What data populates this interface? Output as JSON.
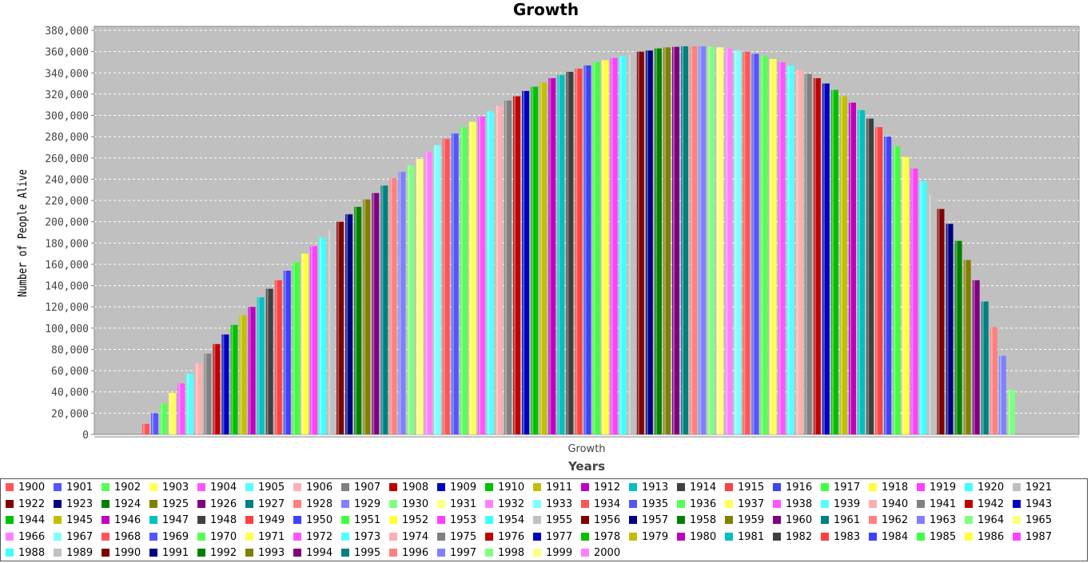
{
  "chart_data": {
    "type": "bar",
    "title": "Growth",
    "xlabel": "Years",
    "ylabel": "Number of People Alive",
    "category_label": "Growth",
    "ylim": [
      0,
      380000
    ],
    "ytick_step": 20000,
    "grid": true,
    "legend": "bottom",
    "series": [
      {
        "name": "1900",
        "value": 10000
      },
      {
        "name": "1901",
        "value": 20000
      },
      {
        "name": "1902",
        "value": 29000
      },
      {
        "name": "1903",
        "value": 39000
      },
      {
        "name": "1904",
        "value": 48000
      },
      {
        "name": "1905",
        "value": 57000
      },
      {
        "name": "1906",
        "value": 67000
      },
      {
        "name": "1907",
        "value": 76000
      },
      {
        "name": "1908",
        "value": 85000
      },
      {
        "name": "1909",
        "value": 94000
      },
      {
        "name": "1910",
        "value": 103000
      },
      {
        "name": "1911",
        "value": 112000
      },
      {
        "name": "1912",
        "value": 120000
      },
      {
        "name": "1913",
        "value": 129000
      },
      {
        "name": "1914",
        "value": 137000
      },
      {
        "name": "1915",
        "value": 145000
      },
      {
        "name": "1916",
        "value": 154000
      },
      {
        "name": "1917",
        "value": 162000
      },
      {
        "name": "1918",
        "value": 170000
      },
      {
        "name": "1919",
        "value": 177000
      },
      {
        "name": "1920",
        "value": 185000
      },
      {
        "name": "1921",
        "value": 192000
      },
      {
        "name": "1922",
        "value": 200000
      },
      {
        "name": "1923",
        "value": 207000
      },
      {
        "name": "1924",
        "value": 214000
      },
      {
        "name": "1925",
        "value": 221000
      },
      {
        "name": "1926",
        "value": 227000
      },
      {
        "name": "1927",
        "value": 234000
      },
      {
        "name": "1928",
        "value": 241000
      },
      {
        "name": "1929",
        "value": 247000
      },
      {
        "name": "1930",
        "value": 253000
      },
      {
        "name": "1931",
        "value": 259000
      },
      {
        "name": "1932",
        "value": 266000
      },
      {
        "name": "1933",
        "value": 272000
      },
      {
        "name": "1934",
        "value": 278000
      },
      {
        "name": "1935",
        "value": 283000
      },
      {
        "name": "1936",
        "value": 289000
      },
      {
        "name": "1937",
        "value": 294000
      },
      {
        "name": "1938",
        "value": 299000
      },
      {
        "name": "1939",
        "value": 304000
      },
      {
        "name": "1940",
        "value": 309000
      },
      {
        "name": "1941",
        "value": 314000
      },
      {
        "name": "1942",
        "value": 318000
      },
      {
        "name": "1943",
        "value": 323000
      },
      {
        "name": "1944",
        "value": 327000
      },
      {
        "name": "1945",
        "value": 331000
      },
      {
        "name": "1946",
        "value": 335000
      },
      {
        "name": "1947",
        "value": 338000
      },
      {
        "name": "1948",
        "value": 341000
      },
      {
        "name": "1949",
        "value": 344000
      },
      {
        "name": "1950",
        "value": 347000
      },
      {
        "name": "1951",
        "value": 350000
      },
      {
        "name": "1952",
        "value": 352000
      },
      {
        "name": "1953",
        "value": 354000
      },
      {
        "name": "1954",
        "value": 356000
      },
      {
        "name": "1955",
        "value": 358000
      },
      {
        "name": "1956",
        "value": 360000
      },
      {
        "name": "1957",
        "value": 361000
      },
      {
        "name": "1958",
        "value": 363000
      },
      {
        "name": "1959",
        "value": 364000
      },
      {
        "name": "1960",
        "value": 364500
      },
      {
        "name": "1961",
        "value": 365000
      },
      {
        "name": "1962",
        "value": 365000
      },
      {
        "name": "1963",
        "value": 365000
      },
      {
        "name": "1964",
        "value": 364500
      },
      {
        "name": "1965",
        "value": 364000
      },
      {
        "name": "1966",
        "value": 363000
      },
      {
        "name": "1967",
        "value": 361000
      },
      {
        "name": "1968",
        "value": 360000
      },
      {
        "name": "1969",
        "value": 358000
      },
      {
        "name": "1970",
        "value": 356000
      },
      {
        "name": "1971",
        "value": 353000
      },
      {
        "name": "1972",
        "value": 350000
      },
      {
        "name": "1973",
        "value": 347000
      },
      {
        "name": "1974",
        "value": 343000
      },
      {
        "name": "1975",
        "value": 339000
      },
      {
        "name": "1976",
        "value": 335000
      },
      {
        "name": "1977",
        "value": 330000
      },
      {
        "name": "1978",
        "value": 324000
      },
      {
        "name": "1979",
        "value": 318000
      },
      {
        "name": "1980",
        "value": 312000
      },
      {
        "name": "1981",
        "value": 305000
      },
      {
        "name": "1982",
        "value": 297000
      },
      {
        "name": "1983",
        "value": 289000
      },
      {
        "name": "1984",
        "value": 280000
      },
      {
        "name": "1985",
        "value": 271000
      },
      {
        "name": "1986",
        "value": 261000
      },
      {
        "name": "1987",
        "value": 250000
      },
      {
        "name": "1988",
        "value": 238000
      },
      {
        "name": "1989",
        "value": 226000
      },
      {
        "name": "1990",
        "value": 212000
      },
      {
        "name": "1991",
        "value": 198000
      },
      {
        "name": "1992",
        "value": 182000
      },
      {
        "name": "1993",
        "value": 164000
      },
      {
        "name": "1994",
        "value": 145000
      },
      {
        "name": "1995",
        "value": 125000
      },
      {
        "name": "1996",
        "value": 101000
      },
      {
        "name": "1997",
        "value": 74000
      },
      {
        "name": "1998",
        "value": 42000
      },
      {
        "name": "1999",
        "value": 0
      },
      {
        "name": "2000",
        "value": 0
      }
    ],
    "palette": [
      "#ff5555",
      "#5555ff",
      "#55ff55",
      "#ffff55",
      "#ff55ff",
      "#55ffff",
      "#ffafaf",
      "#808080",
      "#c00000",
      "#0000c0",
      "#00c000",
      "#c0c000",
      "#c000c0",
      "#00c0c0",
      "#404040",
      "#ff4040",
      "#4040ff",
      "#40ff40",
      "#ffff40",
      "#ff40ff",
      "#40ffff",
      "#c0c0c0",
      "#800000",
      "#000080",
      "#008000",
      "#808000",
      "#800080",
      "#008080",
      "#ff8080",
      "#8080ff",
      "#80ff80",
      "#ffff80",
      "#ff80ff",
      "#80ffff"
    ],
    "plot_background": "#c0c0c0"
  }
}
